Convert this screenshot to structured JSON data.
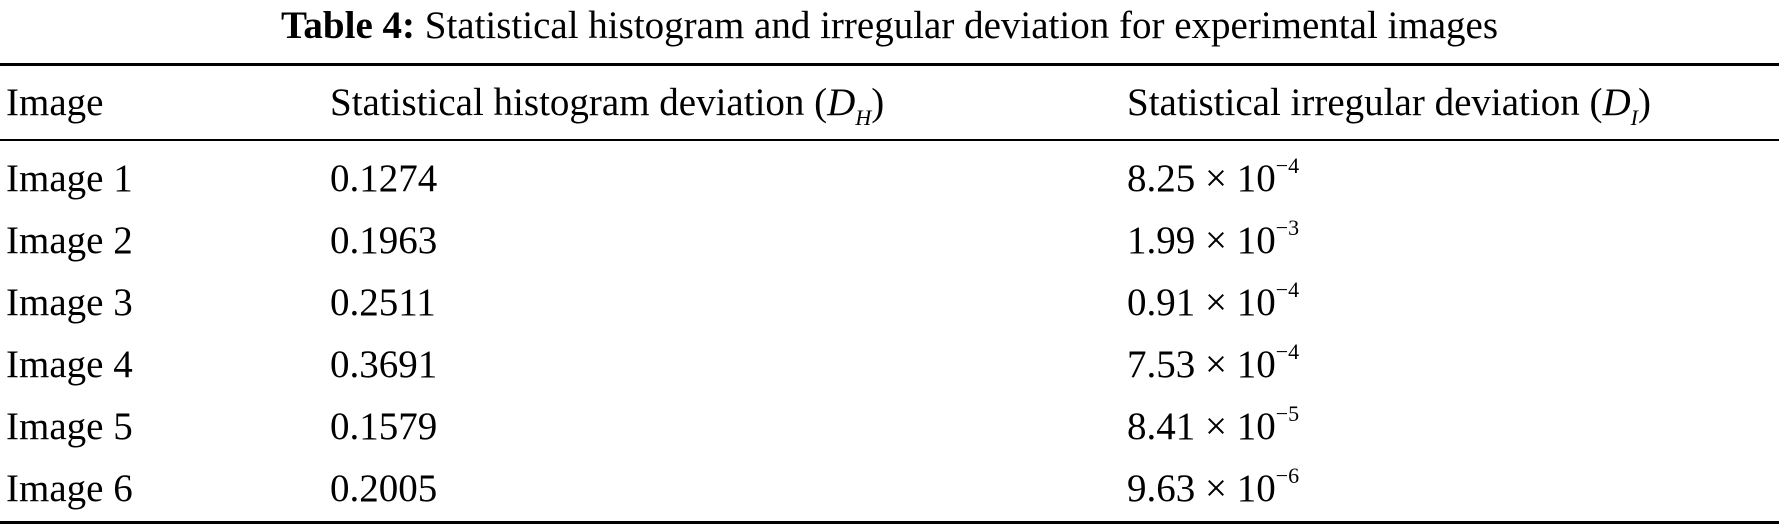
{
  "table": {
    "caption": {
      "label": "Table 4:",
      "text": "Statistical histogram and irregular deviation for experimental images"
    },
    "headers": {
      "image": "Image",
      "histogram": {
        "text": "Statistical histogram deviation (",
        "symbol": "D",
        "subscript": "H",
        "close": ")"
      },
      "irregular": {
        "text": "Statistical irregular deviation (",
        "symbol": "D",
        "subscript": "I",
        "close": ")"
      }
    },
    "rows": [
      {
        "image": "Image 1",
        "histogram": "0.1274",
        "irregular_mantissa": "8.25",
        "irregular_base": " × 10",
        "irregular_exp": "−4"
      },
      {
        "image": "Image 2",
        "histogram": "0.1963",
        "irregular_mantissa": "1.99",
        "irregular_base": " × 10",
        "irregular_exp": "−3"
      },
      {
        "image": "Image 3",
        "histogram": "0.2511",
        "irregular_mantissa": "0.91",
        "irregular_base": " × 10",
        "irregular_exp": "−4"
      },
      {
        "image": "Image 4",
        "histogram": "0.3691",
        "irregular_mantissa": "7.53",
        "irregular_base": " × 10",
        "irregular_exp": "−4"
      },
      {
        "image": "Image 5",
        "histogram": "0.1579",
        "irregular_mantissa": "8.41",
        "irregular_base": " × 10",
        "irregular_exp": "−5"
      },
      {
        "image": "Image 6",
        "histogram": "0.2005",
        "irregular_mantissa": "9.63",
        "irregular_base": " × 10",
        "irregular_exp": "−6"
      }
    ]
  }
}
